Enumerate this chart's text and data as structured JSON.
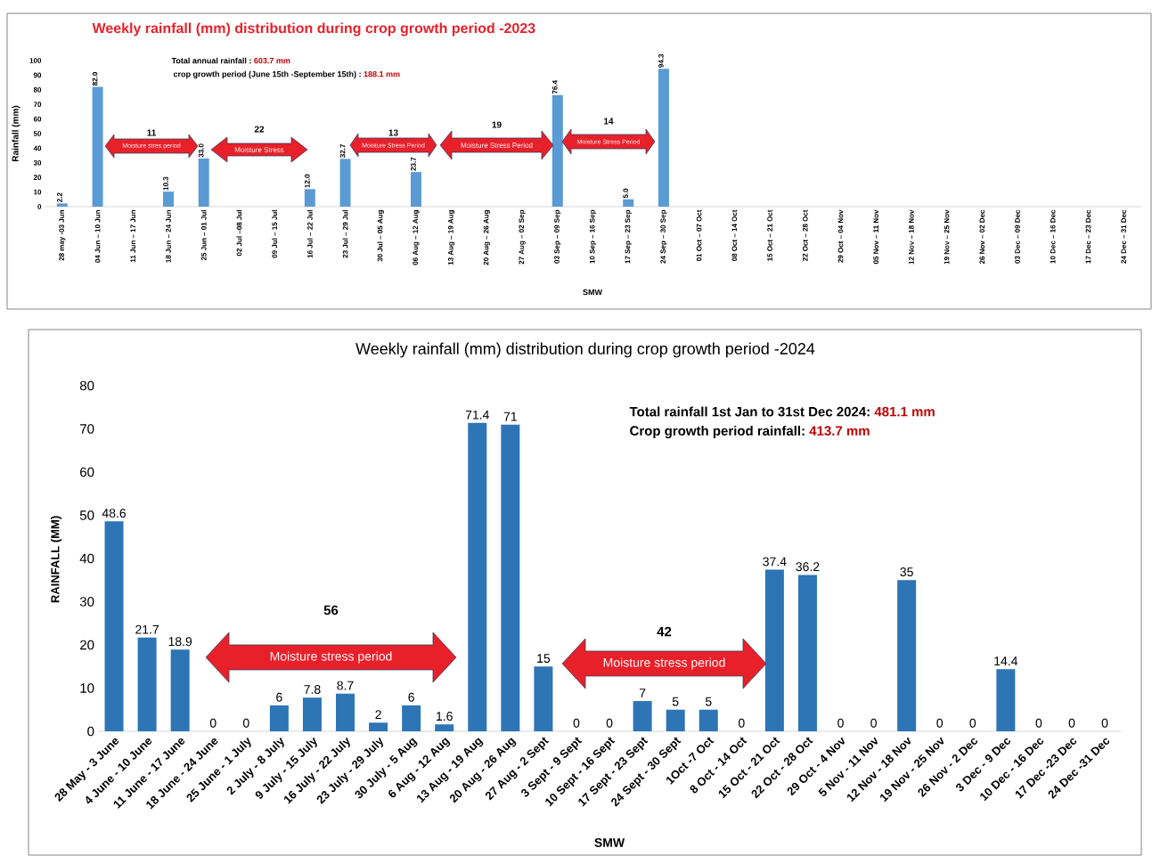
{
  "chart_data": [
    {
      "type": "bar",
      "title": "Weekly rainfall (mm) distribution during crop growth period -2023",
      "xlabel": "SMW",
      "ylabel": "Rainfall (mm)",
      "categories": [
        "28 may -03 Jun",
        "04 Jun – 10 Jun",
        "11 Jun – 17 Jun",
        "18 Jun – 24 Jun",
        "25 Jun – 01 Jul",
        "02 Jul –08 Jul",
        "09 Jul – 15 Jul",
        "16 Jul – 22 Jul",
        "23 Jul – 29 Jul",
        "30 Jul – 05 Aug",
        "06 Aug – 12 Aug",
        "13 Aug – 19 Aug",
        "20 Aug – 26 Aug",
        "27 Aug – 02 Sep",
        "03 Sep – 09 Sep",
        "10 Sep – 16 Sep",
        "17 Sep – 23 Sep",
        "24 Sep – 30 Sep",
        "01 Oct – 07 Oct",
        "08 Oct – 14 Oct",
        "15 Oct – 21 Oct",
        "22 Oct – 28 Oct",
        "29 Oct – 04 Nov",
        "05 Nov – 11 Nov",
        "12 Nov – 18 Nov",
        "19 Nov – 25 Nov",
        "26 Nov – 02 Dec",
        "03 Dec – 09 Dec",
        "10 Dec – 16 Dec",
        "17 Dec – 23 Dec",
        "24 Dec – 31 Dec"
      ],
      "values": [
        2.2,
        82.0,
        null,
        10.3,
        33.0,
        null,
        null,
        12.0,
        32.7,
        null,
        23.7,
        null,
        null,
        null,
        76.4,
        null,
        5.0,
        94.3,
        null,
        null,
        null,
        null,
        null,
        null,
        null,
        null,
        null,
        null,
        null,
        null,
        null
      ],
      "value_labels": [
        "2.2",
        "82.0",
        null,
        "10.3",
        "33.0",
        null,
        null,
        "12.0",
        "32.7",
        null,
        "23.7",
        null,
        null,
        null,
        "76.4",
        null,
        "5.0",
        "94.3",
        null,
        null,
        null,
        null,
        null,
        null,
        null,
        null,
        null,
        null,
        null,
        null,
        null
      ],
      "color": "#5b9bd5",
      "ylim": [
        0,
        100
      ],
      "yticks": [
        0,
        10,
        20,
        30,
        40,
        50,
        60,
        70,
        80,
        90,
        100
      ],
      "annotations": [
        "Total annual rainfall :",
        "603.7 mm",
        "crop growth period (June 15th -September 15th) :",
        "188.1 mm",
        "11",
        "Moisture stres period",
        "22",
        "Moisture Stress",
        "13",
        "Moisture Stress Period",
        "19",
        "Moisture Stress Period",
        "14",
        "Moisture Stress Period"
      ]
    },
    {
      "type": "bar",
      "title": "Weekly rainfall (mm) distribution during crop growth period -2024",
      "xlabel": "SMW",
      "ylabel": "RAINFALL (MM)",
      "categories": [
        "28 May - 3 June",
        "4 June - 10 June",
        "11 June - 17 June",
        "18 June - 24 June",
        "25 June - 1 July",
        "2 July - 8 July",
        "9 July - 15 July",
        "16 July - 22 July",
        "23 July - 29 July",
        "30 July - 5 Aug",
        "6 Aug - 12 Aug",
        "13 Aug - 19 Aug",
        "20 Aug - 26 Aug",
        "27 Aug - 2 Sept",
        "3 Sept - 9 Sept",
        "10 Sept - 16 Sept",
        "17 Sept - 23 Sept",
        "24 Sept - 30 Sept",
        "1Oct -7 Oct",
        "8 Oct - 14 Oct",
        "15 Oct - 21 Oct",
        "22 Oct - 28 Oct",
        "29 Oct - 4 Nov",
        "5 Nov - 11 Nov",
        "12 Nov - 18 Nov",
        "19 Nov - 25 Nov",
        "26 Nov - 2 Dec",
        "3 Dec - 9 Dec",
        "10 Dec - 16 Dec",
        "17 Dec -23 Dec",
        "24 Dec -31 Dec"
      ],
      "values": [
        48.6,
        21.7,
        18.9,
        0,
        0,
        6,
        7.8,
        8.7,
        2,
        6,
        1.6,
        71.4,
        71,
        15,
        0,
        0,
        7,
        5,
        5,
        0,
        37.4,
        36.2,
        0,
        0,
        35,
        0,
        0,
        14.4,
        0,
        0,
        0
      ],
      "data_labels": true,
      "color": "#2e75b6",
      "ylim": [
        0,
        80
      ],
      "yticks": [
        0,
        10,
        20,
        30,
        40,
        50,
        60,
        70,
        80
      ],
      "annotations": [
        "Total rainfall 1st Jan to 31st Dec 2024:",
        "481.1 mm",
        "Crop growth period rainfall:",
        "413.7 mm",
        "56",
        "Moisture stress period",
        "42",
        "Moisture stress period"
      ]
    }
  ]
}
